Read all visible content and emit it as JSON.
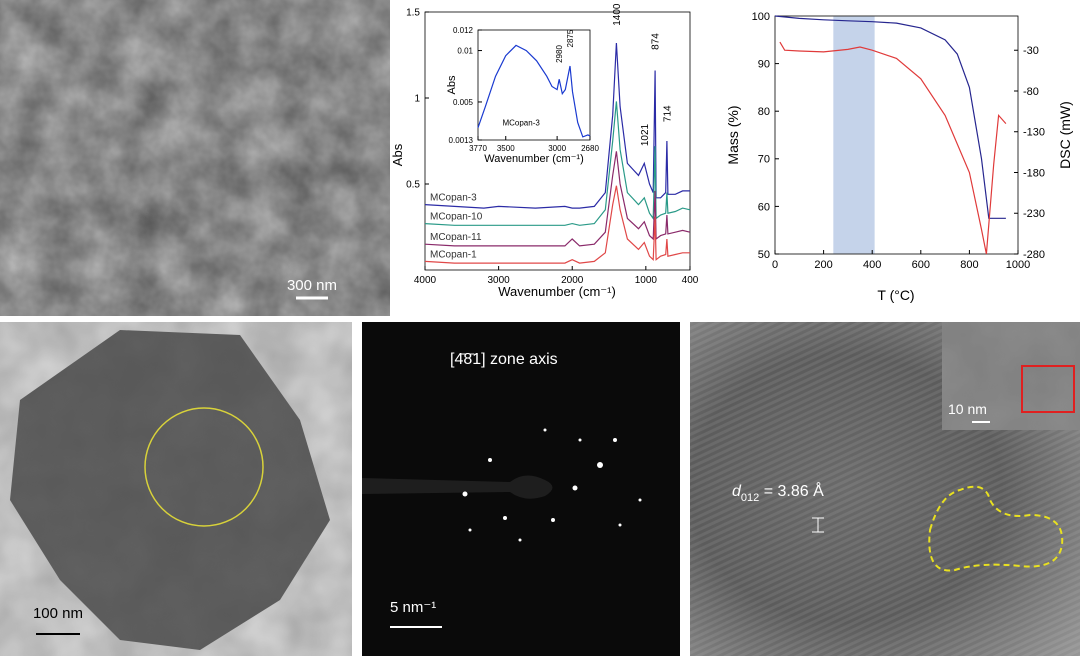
{
  "chart_data": [
    {
      "type": "line",
      "ylabel": "Abs",
      "xlabel": "Wavenumber (cm⁻¹)",
      "xlim": [
        4000,
        400
      ],
      "ylim": [
        0,
        1.5
      ],
      "xticks": [
        4000,
        3000,
        2000,
        1000,
        400
      ],
      "yticks": [
        0.5,
        1,
        1.5
      ],
      "x": [
        4000,
        3600,
        3200,
        3000,
        2500,
        2100,
        2000,
        1900,
        1700,
        1550,
        1450,
        1400,
        1350,
        1250,
        1100,
        1021,
        950,
        900,
        874,
        860,
        800,
        730,
        714,
        700,
        600,
        500,
        400
      ],
      "series": [
        {
          "name": "MCopan-3",
          "color": "#2b2ba6",
          "values": [
            0.38,
            0.37,
            0.36,
            0.37,
            0.36,
            0.37,
            0.36,
            0.36,
            0.37,
            0.45,
            0.9,
            1.32,
            0.95,
            0.62,
            0.55,
            0.62,
            0.5,
            0.45,
            1.16,
            0.42,
            0.42,
            0.45,
            0.75,
            0.44,
            0.44,
            0.46,
            0.46
          ]
        },
        {
          "name": "MCopan-10",
          "color": "#2a9a88",
          "values": [
            0.27,
            0.26,
            0.26,
            0.26,
            0.26,
            0.26,
            0.27,
            0.26,
            0.27,
            0.35,
            0.75,
            0.98,
            0.7,
            0.45,
            0.38,
            0.42,
            0.33,
            0.3,
            0.72,
            0.3,
            0.32,
            0.33,
            0.45,
            0.33,
            0.34,
            0.36,
            0.35
          ]
        },
        {
          "name": "MCopan-11",
          "color": "#8a2a6a",
          "values": [
            0.15,
            0.14,
            0.14,
            0.14,
            0.14,
            0.14,
            0.18,
            0.14,
            0.15,
            0.22,
            0.55,
            0.69,
            0.5,
            0.3,
            0.24,
            0.28,
            0.2,
            0.18,
            0.46,
            0.18,
            0.2,
            0.21,
            0.32,
            0.21,
            0.22,
            0.23,
            0.22
          ]
        },
        {
          "name": "MCopan-1",
          "color": "#e04848",
          "values": [
            0.05,
            0.04,
            0.04,
            0.04,
            0.04,
            0.04,
            0.06,
            0.04,
            0.05,
            0.1,
            0.38,
            0.49,
            0.35,
            0.18,
            0.12,
            0.16,
            0.08,
            0.06,
            0.31,
            0.06,
            0.08,
            0.09,
            0.18,
            0.08,
            0.09,
            0.1,
            0.1
          ]
        }
      ],
      "annotations": [
        {
          "text": "1400",
          "x": 1400,
          "y": 1.42,
          "orientation": "vertical"
        },
        {
          "text": "874",
          "x": 874,
          "y": 1.28,
          "orientation": "vertical"
        },
        {
          "text": "1021",
          "x": 1021,
          "y": 0.72,
          "orientation": "vertical"
        },
        {
          "text": "714",
          "x": 714,
          "y": 0.86,
          "orientation": "vertical"
        }
      ]
    },
    {
      "type": "line",
      "ylabel": "Abs",
      "xlabel": "Wavenumber (cm⁻¹)",
      "xlim": [
        3770,
        2680
      ],
      "ylim": [
        0.0013,
        0.012
      ],
      "xticks": [
        3770,
        3500,
        3000,
        2680
      ],
      "yticks": [
        0.0013,
        0.005,
        0.01,
        0.012
      ],
      "x": [
        3770,
        3700,
        3600,
        3500,
        3400,
        3300,
        3200,
        3100,
        3050,
        3000,
        2980,
        2950,
        2920,
        2875,
        2850,
        2800,
        2750,
        2700,
        2680
      ],
      "series": [
        {
          "color": "#1a3ad0",
          "values": [
            0.0025,
            0.0045,
            0.0075,
            0.0095,
            0.0105,
            0.01,
            0.009,
            0.0075,
            0.0065,
            0.0062,
            0.0072,
            0.0058,
            0.0062,
            0.0085,
            0.006,
            0.003,
            0.0016,
            0.0018,
            0.0017
          ]
        }
      ],
      "annotations": [
        {
          "text": "2980",
          "x": 2980,
          "y": 0.0088,
          "orientation": "vertical"
        },
        {
          "text": "2875",
          "x": 2875,
          "y": 0.0103,
          "orientation": "vertical"
        },
        {
          "text": "MCopan-3",
          "x": 3350,
          "y": 0.0027,
          "orientation": "horizontal"
        }
      ]
    },
    {
      "type": "line",
      "xlabel": "T (°C)",
      "ylabel": "Mass (%)",
      "y2label": "DSC (mW)",
      "xlim": [
        0,
        1000
      ],
      "ylim": [
        50,
        100
      ],
      "y2lim": [
        -280,
        12
      ],
      "xticks": [
        0,
        200,
        400,
        600,
        800,
        1000
      ],
      "yticks": [
        50,
        60,
        70,
        80,
        90,
        100
      ],
      "y2ticks": [
        -30,
        -80,
        -130,
        -180,
        -230,
        -280
      ],
      "shade": {
        "x": [
          240,
          410
        ],
        "color": "#c5d3ea"
      },
      "series": [
        {
          "color": "#26268f",
          "x": [
            0,
            100,
            200,
            300,
            400,
            500,
            600,
            700,
            750,
            800,
            850,
            880,
            900,
            950
          ],
          "values": [
            100,
            99.5,
            99.2,
            99,
            98.8,
            98.5,
            97.5,
            95,
            92,
            85,
            70,
            57.5,
            57.5,
            57.5
          ]
        },
        {
          "color": "#e03a3a",
          "axis": "y2",
          "x": [
            20,
            40,
            100,
            200,
            300,
            350,
            400,
            500,
            600,
            700,
            800,
            850,
            870,
            900,
            920,
            950
          ],
          "values": [
            -20,
            -30,
            -31,
            -32,
            -29,
            -26,
            -30,
            -40,
            -65,
            -110,
            -180,
            -250,
            -280,
            -170,
            -110,
            -120
          ]
        }
      ]
    }
  ],
  "images": {
    "sem": {
      "scale_bar": "300 nm"
    },
    "tem": {
      "scale_bar": "100 nm"
    },
    "saed": {
      "zone_axis": "[4̄8̄1] zone axis",
      "scale_bar": "5 nm⁻¹"
    },
    "hrtem": {
      "d_symbol": "d",
      "d_index": "012",
      "d_value": " = 3.86 Å",
      "inset_scale_bar": "10 nm"
    }
  }
}
